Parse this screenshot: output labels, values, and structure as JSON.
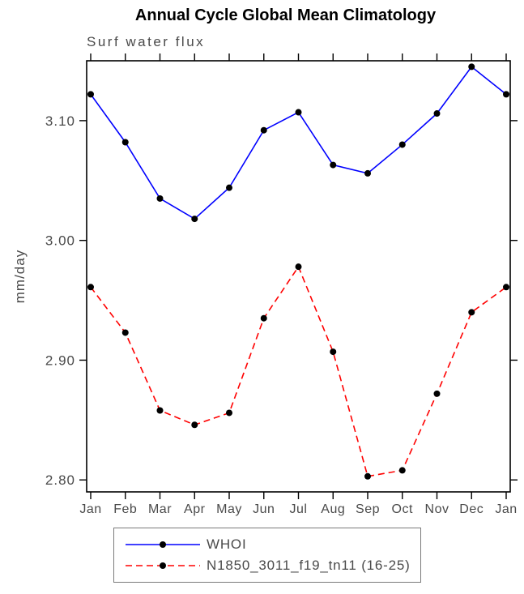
{
  "title": "Annual Cycle Global Mean Climatology",
  "chart_data": {
    "type": "line",
    "title": "Annual Cycle Global Mean Climatology",
    "subtitle": "Surf water flux",
    "ylabel": "mm/day",
    "xlabel": "",
    "categories": [
      "Jan",
      "Feb",
      "Mar",
      "Apr",
      "May",
      "Jun",
      "Jul",
      "Aug",
      "Sep",
      "Oct",
      "Nov",
      "Dec",
      "Jan"
    ],
    "ytick_labels": [
      "2.80",
      "2.90",
      "3.00",
      "3.10"
    ],
    "yticks": [
      2.8,
      2.9,
      3.0,
      3.1
    ],
    "ylim": [
      2.79,
      3.15
    ],
    "grid": false,
    "legend_position": "bottom",
    "marker": "filled-circle",
    "marker_color": "#000000",
    "series": [
      {
        "name": "WHOI",
        "color": "#0000ff",
        "style": "solid",
        "values": [
          3.122,
          3.082,
          3.035,
          3.018,
          3.044,
          3.092,
          3.107,
          3.063,
          3.056,
          3.08,
          3.106,
          3.145,
          3.122
        ]
      },
      {
        "name": "N1850_3011_f19_tn11 (16-25)",
        "color": "#ff0000",
        "style": "dashed",
        "values": [
          2.961,
          2.923,
          2.858,
          2.846,
          2.856,
          2.935,
          2.978,
          2.907,
          2.803,
          2.808,
          2.872,
          2.94,
          2.961
        ]
      }
    ]
  },
  "colors": {
    "axis_text": "#4a4a4a",
    "axis_line": "#000000",
    "title_text": "#000000",
    "legend_border": "#7a7a7a",
    "series_blue": "#0000ff",
    "series_red": "#ff0000",
    "marker": "#000000"
  }
}
